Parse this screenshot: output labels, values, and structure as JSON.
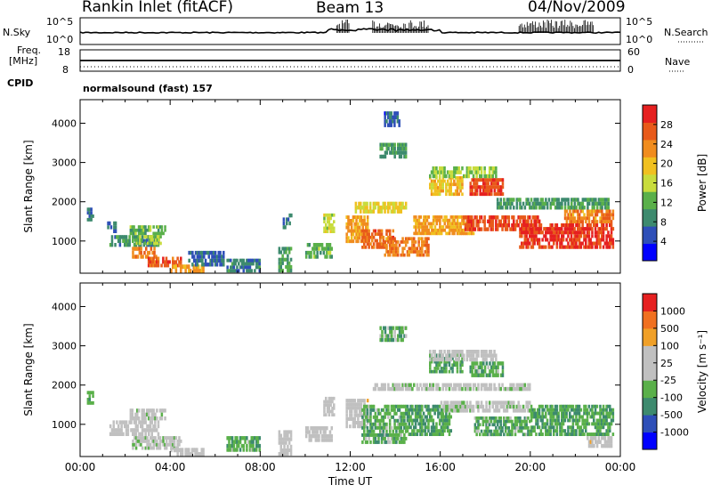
{
  "header": {
    "station": "Rankin Inlet (fitACF)",
    "beam": "Beam 13",
    "date": "04/Nov/2009"
  },
  "nsky_panel": {
    "left_label": "N.Sky",
    "left_ticks": [
      "10^5",
      "10^0"
    ],
    "right_label": "N.Search",
    "right_ticks": [
      "10^5",
      "10^0"
    ]
  },
  "freq_panel": {
    "left_label_1": "Freq.",
    "left_label_2": "[MHz]",
    "left_ticks": [
      "18",
      "8"
    ],
    "right_label": "Nave",
    "right_ticks": [
      "60",
      "0"
    ],
    "cpid_label": "CPID"
  },
  "mode_label": "normalsound (fast) 157",
  "colors": {
    "power_scale": [
      "#0000ff",
      "#2e4fb8",
      "#3d8a6e",
      "#5ab04a",
      "#c8dc3c",
      "#f0c020",
      "#f08c1e",
      "#e85a1a",
      "#e62020"
    ],
    "velocity_scale": [
      "#0000ff",
      "#2e4fb8",
      "#3d8a6e",
      "#5ab04a",
      "#c0c0c0",
      "#c0c0c0",
      "#f0a028",
      "#f07020",
      "#e62020"
    ]
  },
  "chart_data": [
    {
      "type": "heatmap",
      "panel": "power",
      "ylabel": "Slant Range [km]",
      "y_ticks": [
        1000,
        2000,
        3000,
        4000
      ],
      "ylim": [
        180,
        4600
      ],
      "x_ticks": [
        "00:00",
        "04:00",
        "08:00",
        "12:00",
        "16:00",
        "20:00",
        "00:00"
      ],
      "xlim_hours": [
        0,
        24
      ],
      "colorbar": {
        "label": "Power [dB]",
        "ticks": [
          "28",
          "24",
          "20",
          "16",
          "12",
          "8",
          "4"
        ],
        "range": [
          0,
          32
        ]
      },
      "regions": [
        {
          "t0": 0.3,
          "t1": 0.6,
          "r0": 1500,
          "r1": 1850,
          "value": 8
        },
        {
          "t0": 1.2,
          "t1": 1.6,
          "r0": 1200,
          "r1": 1500,
          "value": 6
        },
        {
          "t0": 1.3,
          "t1": 3.5,
          "r0": 850,
          "r1": 1150,
          "value": 9
        },
        {
          "t0": 2.2,
          "t1": 3.8,
          "r0": 1150,
          "r1": 1400,
          "value": 12
        },
        {
          "t0": 2.4,
          "t1": 3.6,
          "r0": 900,
          "r1": 1150,
          "value": 14
        },
        {
          "t0": 2.3,
          "t1": 3.4,
          "r0": 550,
          "r1": 850,
          "value": 24
        },
        {
          "t0": 3.0,
          "t1": 4.5,
          "r0": 330,
          "r1": 600,
          "value": 27
        },
        {
          "t0": 4.0,
          "t1": 5.5,
          "r0": 180,
          "r1": 400,
          "value": 22
        },
        {
          "t0": 4.8,
          "t1": 6.4,
          "r0": 350,
          "r1": 750,
          "value": 7
        },
        {
          "t0": 6.5,
          "t1": 8.0,
          "r0": 200,
          "r1": 550,
          "value": 8
        },
        {
          "t0": 8.8,
          "t1": 9.4,
          "r0": 200,
          "r1": 850,
          "value": 10
        },
        {
          "t0": 9.0,
          "t1": 9.4,
          "r0": 1300,
          "r1": 1700,
          "value": 8
        },
        {
          "t0": 10.0,
          "t1": 11.2,
          "r0": 550,
          "r1": 950,
          "value": 12
        },
        {
          "t0": 10.8,
          "t1": 11.3,
          "r0": 1200,
          "r1": 1700,
          "value": 16
        },
        {
          "t0": 11.8,
          "t1": 12.8,
          "r0": 950,
          "r1": 1650,
          "value": 22
        },
        {
          "t0": 12.5,
          "t1": 14.0,
          "r0": 800,
          "r1": 1300,
          "value": 26
        },
        {
          "t0": 13.5,
          "t1": 15.5,
          "r0": 600,
          "r1": 1100,
          "value": 24
        },
        {
          "t0": 14.8,
          "t1": 17.5,
          "r0": 1150,
          "r1": 1650,
          "value": 22
        },
        {
          "t0": 17.0,
          "t1": 20.5,
          "r0": 1250,
          "r1": 1650,
          "value": 28
        },
        {
          "t0": 19.5,
          "t1": 23.7,
          "r0": 800,
          "r1": 1450,
          "value": 29
        },
        {
          "t0": 21.5,
          "t1": 23.7,
          "r0": 1450,
          "r1": 1800,
          "value": 24
        },
        {
          "t0": 15.5,
          "t1": 17.0,
          "r0": 2150,
          "r1": 2650,
          "value": 20
        },
        {
          "t0": 17.3,
          "t1": 18.8,
          "r0": 2150,
          "r1": 2600,
          "value": 28
        },
        {
          "t0": 15.5,
          "t1": 18.5,
          "r0": 2600,
          "r1": 2900,
          "value": 14
        },
        {
          "t0": 12.2,
          "t1": 14.5,
          "r0": 1700,
          "r1": 2000,
          "value": 18
        },
        {
          "t0": 13.3,
          "t1": 14.5,
          "r0": 3100,
          "r1": 3500,
          "value": 10
        },
        {
          "t0": 18.5,
          "t1": 23.5,
          "r0": 1800,
          "r1": 2100,
          "value": 10
        },
        {
          "t0": 13.5,
          "t1": 14.2,
          "r0": 3900,
          "r1": 4300,
          "value": 6
        }
      ]
    },
    {
      "type": "heatmap",
      "panel": "velocity",
      "ylabel": "Slant Range [km]",
      "y_ticks": [
        1000,
        2000,
        3000,
        4000
      ],
      "ylim": [
        180,
        4600
      ],
      "x_ticks": [
        "00:00",
        "04:00",
        "08:00",
        "12:00",
        "16:00",
        "20:00",
        "00:00"
      ],
      "xlabel": "Time UT",
      "xlim_hours": [
        0,
        24
      ],
      "colorbar": {
        "label": "Velocity [m s⁻¹]",
        "ticks": [
          "1000",
          "500",
          "100",
          "25",
          "-25",
          "-100",
          "-500",
          "-1000"
        ],
        "range": [
          -1200,
          1200
        ]
      },
      "regions": [
        {
          "t0": 0.3,
          "t1": 0.6,
          "r0": 1500,
          "r1": 1850,
          "value": -300
        },
        {
          "t0": 2.2,
          "t1": 3.8,
          "r0": 1100,
          "r1": 1400,
          "value": 0
        },
        {
          "t0": 1.3,
          "t1": 3.5,
          "r0": 700,
          "r1": 1100,
          "value": 120
        },
        {
          "t0": 2.3,
          "t1": 4.5,
          "r0": 350,
          "r1": 700,
          "value": 0
        },
        {
          "t0": 4.0,
          "t1": 5.5,
          "r0": 180,
          "r1": 400,
          "value": 60
        },
        {
          "t0": 6.5,
          "t1": 8.0,
          "r0": 300,
          "r1": 700,
          "value": -300
        },
        {
          "t0": 8.8,
          "t1": 9.4,
          "r0": 200,
          "r1": 850,
          "value": 120
        },
        {
          "t0": 10.0,
          "t1": 11.2,
          "r0": 550,
          "r1": 950,
          "value": 130
        },
        {
          "t0": 10.8,
          "t1": 11.3,
          "r0": 1200,
          "r1": 1700,
          "value": 150
        },
        {
          "t0": 11.8,
          "t1": 12.8,
          "r0": 900,
          "r1": 1650,
          "value": 200
        },
        {
          "t0": 12.5,
          "t1": 14.5,
          "r0": 500,
          "r1": 1500,
          "value": -300
        },
        {
          "t0": 14.5,
          "t1": 16.5,
          "r0": 700,
          "r1": 1500,
          "value": -400
        },
        {
          "t0": 16.0,
          "t1": 20.0,
          "r0": 1300,
          "r1": 1600,
          "value": 0
        },
        {
          "t0": 17.5,
          "t1": 20.0,
          "r0": 700,
          "r1": 1200,
          "value": -300
        },
        {
          "t0": 20.0,
          "t1": 23.7,
          "r0": 700,
          "r1": 1500,
          "value": -350
        },
        {
          "t0": 22.5,
          "t1": 23.7,
          "r0": 400,
          "r1": 700,
          "value": 200
        },
        {
          "t0": 15.5,
          "t1": 17.0,
          "r0": 2300,
          "r1": 2800,
          "value": -350
        },
        {
          "t0": 17.3,
          "t1": 18.8,
          "r0": 2200,
          "r1": 2600,
          "value": -300
        },
        {
          "t0": 13.0,
          "t1": 20.0,
          "r0": 1850,
          "r1": 2050,
          "value": 0
        },
        {
          "t0": 13.3,
          "t1": 14.5,
          "r0": 3100,
          "r1": 3500,
          "value": -300
        },
        {
          "t0": 15.5,
          "t1": 18.5,
          "r0": 2600,
          "r1": 2900,
          "value": 150
        }
      ]
    }
  ]
}
